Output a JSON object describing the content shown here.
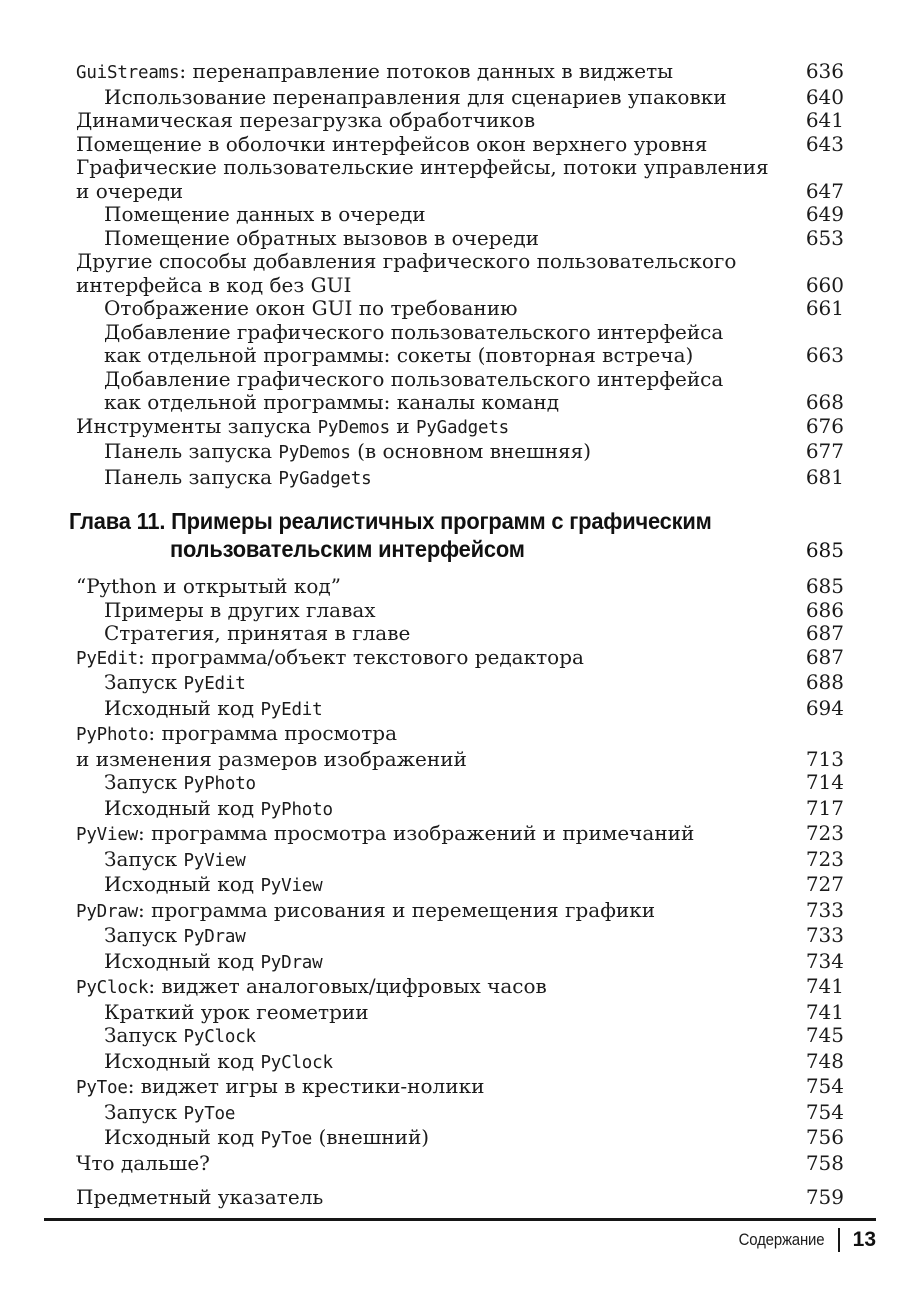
{
  "document": {
    "kind": "book-table-of-contents-page",
    "language": "ru",
    "ink_color": "#1b1b1b",
    "background_color": "#ffffff"
  },
  "footer": {
    "section_label": "Содержание",
    "page_number": "13"
  },
  "toc": {
    "blocks": [
      {
        "type": "entries",
        "rows": [
          {
            "indent": 0,
            "segments": [
              {
                "style": "mono",
                "text": "GuiStreams"
              },
              {
                "style": "plain",
                "text": ": перенаправление потоков данных в виджеты"
              }
            ],
            "page": "636"
          },
          {
            "indent": 1,
            "segments": [
              {
                "style": "plain",
                "text": "Использование перенаправления для сценариев упаковки"
              }
            ],
            "page": "640"
          },
          {
            "indent": 0,
            "segments": [
              {
                "style": "plain",
                "text": "Динамическая перезагрузка обработчиков"
              }
            ],
            "page": "641"
          },
          {
            "indent": 0,
            "segments": [
              {
                "style": "plain",
                "text": "Помещение в оболочки интерфейсов окон верхнего уровня"
              }
            ],
            "page": "643"
          },
          {
            "indent": 0,
            "segments": [
              {
                "style": "plain",
                "text": "Графические пользовательские интерфейсы, потоки управления"
              }
            ],
            "page": null
          },
          {
            "indent": 0,
            "segments": [
              {
                "style": "plain",
                "text": "и очереди"
              }
            ],
            "page": "647"
          },
          {
            "indent": 1,
            "segments": [
              {
                "style": "plain",
                "text": "Помещение данных в очереди"
              }
            ],
            "page": "649"
          },
          {
            "indent": 1,
            "segments": [
              {
                "style": "plain",
                "text": "Помещение обратных вызовов в очереди"
              }
            ],
            "page": "653"
          },
          {
            "indent": 0,
            "segments": [
              {
                "style": "plain",
                "text": "Другие способы добавления графического пользовательского"
              }
            ],
            "page": null
          },
          {
            "indent": 0,
            "segments": [
              {
                "style": "plain",
                "text": "интерфейса в код без GUI"
              }
            ],
            "page": "660"
          },
          {
            "indent": 1,
            "segments": [
              {
                "style": "plain",
                "text": "Отображение окон GUI по требованию"
              }
            ],
            "page": "661"
          },
          {
            "indent": 1,
            "segments": [
              {
                "style": "plain",
                "text": "Добавление графического пользовательского интерфейса"
              }
            ],
            "page": null
          },
          {
            "indent": 1,
            "segments": [
              {
                "style": "plain",
                "text": "как отдельной программы: сокеты (повторная встреча)"
              }
            ],
            "page": "663"
          },
          {
            "indent": 1,
            "segments": [
              {
                "style": "plain",
                "text": "Добавление графического пользовательского интерфейса"
              }
            ],
            "page": null
          },
          {
            "indent": 1,
            "segments": [
              {
                "style": "plain",
                "text": "как отдельной программы: каналы команд"
              }
            ],
            "page": "668"
          },
          {
            "indent": 0,
            "segments": [
              {
                "style": "plain",
                "text": "Инструменты запуска "
              },
              {
                "style": "mono",
                "text": "PyDemos"
              },
              {
                "style": "plain",
                "text": " и "
              },
              {
                "style": "mono",
                "text": "PyGadgets"
              }
            ],
            "page": "676"
          },
          {
            "indent": 1,
            "segments": [
              {
                "style": "plain",
                "text": "Панель запуска "
              },
              {
                "style": "mono",
                "text": "PyDemos"
              },
              {
                "style": "plain",
                "text": " (в основном внешняя)"
              }
            ],
            "page": "677"
          },
          {
            "indent": 1,
            "segments": [
              {
                "style": "plain",
                "text": "Панель запуска "
              },
              {
                "style": "mono",
                "text": "PyGadgets"
              }
            ],
            "page": "681"
          }
        ]
      },
      {
        "type": "chapter",
        "lines": [
          "Глава 11. Примеры реалистичных программ с графическим",
          "пользовательским интерфейсом"
        ],
        "page": "685"
      },
      {
        "type": "entries",
        "rows": [
          {
            "indent": 0,
            "segments": [
              {
                "style": "plain",
                "text": "“Python и открытый код”"
              }
            ],
            "page": "685"
          },
          {
            "indent": 1,
            "segments": [
              {
                "style": "plain",
                "text": "Примеры в других главах"
              }
            ],
            "page": "686"
          },
          {
            "indent": 1,
            "segments": [
              {
                "style": "plain",
                "text": "Стратегия, принятая в главе"
              }
            ],
            "page": "687"
          },
          {
            "indent": 0,
            "segments": [
              {
                "style": "mono",
                "text": "PyEdit"
              },
              {
                "style": "plain",
                "text": ": программа/объект текстового редактора"
              }
            ],
            "page": "687"
          },
          {
            "indent": 1,
            "segments": [
              {
                "style": "plain",
                "text": "Запуск "
              },
              {
                "style": "mono",
                "text": "PyEdit"
              }
            ],
            "page": "688"
          },
          {
            "indent": 1,
            "segments": [
              {
                "style": "plain",
                "text": "Исходный код "
              },
              {
                "style": "mono",
                "text": "PyEdit"
              }
            ],
            "page": "694"
          },
          {
            "indent": 0,
            "segments": [
              {
                "style": "mono",
                "text": "PyPhoto"
              },
              {
                "style": "plain",
                "text": ": программа просмотра"
              }
            ],
            "page": null
          },
          {
            "indent": 0,
            "segments": [
              {
                "style": "plain",
                "text": "и изменения размеров изображений"
              }
            ],
            "page": "713"
          },
          {
            "indent": 1,
            "segments": [
              {
                "style": "plain",
                "text": "Запуск "
              },
              {
                "style": "mono",
                "text": "PyPhoto"
              }
            ],
            "page": "714"
          },
          {
            "indent": 1,
            "segments": [
              {
                "style": "plain",
                "text": "Исходный код "
              },
              {
                "style": "mono",
                "text": "PyPhoto"
              }
            ],
            "page": "717"
          },
          {
            "indent": 0,
            "segments": [
              {
                "style": "mono",
                "text": "PyView"
              },
              {
                "style": "plain",
                "text": ": программа просмотра изображений и примечаний"
              }
            ],
            "page": "723"
          },
          {
            "indent": 1,
            "segments": [
              {
                "style": "plain",
                "text": "Запуск "
              },
              {
                "style": "mono",
                "text": "PyView"
              }
            ],
            "page": "723"
          },
          {
            "indent": 1,
            "segments": [
              {
                "style": "plain",
                "text": "Исходный код "
              },
              {
                "style": "mono",
                "text": "PyView"
              }
            ],
            "page": "727"
          },
          {
            "indent": 0,
            "segments": [
              {
                "style": "mono",
                "text": "PyDraw"
              },
              {
                "style": "plain",
                "text": ": программа рисования и перемещения графики"
              }
            ],
            "page": "733"
          },
          {
            "indent": 1,
            "segments": [
              {
                "style": "plain",
                "text": "Запуск "
              },
              {
                "style": "mono",
                "text": "PyDraw"
              }
            ],
            "page": "733"
          },
          {
            "indent": 1,
            "segments": [
              {
                "style": "plain",
                "text": "Исходный код "
              },
              {
                "style": "mono",
                "text": "PyDraw"
              }
            ],
            "page": "734"
          },
          {
            "indent": 0,
            "segments": [
              {
                "style": "mono",
                "text": "PyClock"
              },
              {
                "style": "plain",
                "text": ": виджет аналоговых/цифровых часов"
              }
            ],
            "page": "741"
          },
          {
            "indent": 1,
            "segments": [
              {
                "style": "plain",
                "text": "Краткий урок геометрии"
              }
            ],
            "page": "741"
          },
          {
            "indent": 1,
            "segments": [
              {
                "style": "plain",
                "text": "Запуск "
              },
              {
                "style": "mono",
                "text": "PyClock"
              }
            ],
            "page": "745"
          },
          {
            "indent": 1,
            "segments": [
              {
                "style": "plain",
                "text": "Исходный код "
              },
              {
                "style": "mono",
                "text": "PyClock"
              }
            ],
            "page": "748"
          },
          {
            "indent": 0,
            "segments": [
              {
                "style": "mono",
                "text": "PyToe"
              },
              {
                "style": "plain",
                "text": ": виджет игры в крестики-нолики"
              }
            ],
            "page": "754"
          },
          {
            "indent": 1,
            "segments": [
              {
                "style": "plain",
                "text": "Запуск "
              },
              {
                "style": "mono",
                "text": "PyToe"
              }
            ],
            "page": "754"
          },
          {
            "indent": 1,
            "segments": [
              {
                "style": "plain",
                "text": "Исходный код "
              },
              {
                "style": "mono",
                "text": "PyToe"
              },
              {
                "style": "plain",
                "text": " (внешний)"
              }
            ],
            "page": "756"
          },
          {
            "indent": 0,
            "segments": [
              {
                "style": "plain",
                "text": "Что дальше?"
              }
            ],
            "page": "758"
          },
          {
            "indent": 0,
            "gap_before": true,
            "segments": [
              {
                "style": "plain",
                "text": "Предметный указатель"
              }
            ],
            "page": "759"
          }
        ]
      }
    ]
  }
}
